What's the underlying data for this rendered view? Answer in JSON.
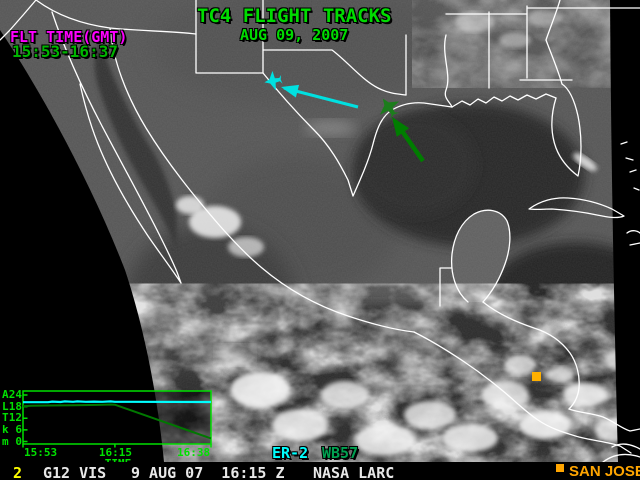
{
  "header": {
    "title_line1": "TC4 FLIGHT TRACKS",
    "title_line2": "AUG 09, 2007",
    "flt_time_label": "FLT TIME(GMT)",
    "flt_time_value": "15:53-16:37"
  },
  "map": {
    "aircraft_tracks": [
      {
        "name": "ER-2",
        "color": "#00e0e0",
        "heading": "west-northwest over Texas"
      },
      {
        "name": "WB57",
        "color": "#007d00",
        "heading": "north-northwest over Gulf coast"
      }
    ],
    "marker": {
      "label": "SAN JOSE",
      "color": "#ffa500"
    }
  },
  "aircraft_legend": {
    "er2": "ER-2",
    "wb57": "WB57"
  },
  "status_bar": {
    "channel": "2",
    "satellite": "G12 VIS",
    "datetime": "9 AUG 07  16:15 Z",
    "agency": "NASA LARC",
    "legend_label": "SAN JOSE"
  },
  "colors": {
    "title_green": "#00dc00",
    "magenta": "#ff00ff",
    "cyan": "#00ffff",
    "track_green": "#007d00",
    "chart_green": "#00e000",
    "yellow": "#ffff00",
    "orange": "#ffa500"
  },
  "chart_data": {
    "type": "line",
    "title": "",
    "xlabel": "TIME",
    "ylabel": "ALT km",
    "ylabel_letters": [
      "A",
      "L",
      "T",
      "k",
      "m"
    ],
    "xlim": [
      0,
      45
    ],
    "ylim": [
      0,
      24
    ],
    "grid": false,
    "legend_position": "none",
    "x_ticks": [
      {
        "t": 0,
        "label": "15:53",
        "align": "left"
      },
      {
        "t": 22,
        "label": "16:15",
        "align": "center"
      },
      {
        "t": 45,
        "label": "16:38",
        "align": "right"
      }
    ],
    "y_rows": [
      {
        "letter": "A",
        "value": 24
      },
      {
        "letter": "L",
        "value": 18
      },
      {
        "letter": "T",
        "value": 12
      },
      {
        "letter": "k",
        "value": 6
      },
      {
        "letter": "m",
        "value": 0
      }
    ],
    "series": [
      {
        "name": "ER-2",
        "color": "#00ffff",
        "points": [
          [
            0,
            20.3
          ],
          [
            6,
            20.3
          ],
          [
            7,
            20.6
          ],
          [
            9,
            20.4
          ],
          [
            10,
            20.7
          ],
          [
            12,
            20.5
          ],
          [
            13,
            20.7
          ],
          [
            15,
            20.5
          ],
          [
            17,
            20.6
          ],
          [
            19,
            20.5
          ],
          [
            21,
            20.7
          ],
          [
            22,
            20.5
          ],
          [
            26,
            20.5
          ],
          [
            45,
            20.4
          ]
        ]
      },
      {
        "name": "WB57",
        "color": "#007800",
        "points": [
          [
            0,
            18.2
          ],
          [
            2,
            18.5
          ],
          [
            6,
            18.6
          ],
          [
            12,
            18.7
          ],
          [
            18,
            18.9
          ],
          [
            21,
            19.1
          ],
          [
            22,
            19.0
          ],
          [
            45,
            1.6
          ]
        ]
      }
    ]
  }
}
